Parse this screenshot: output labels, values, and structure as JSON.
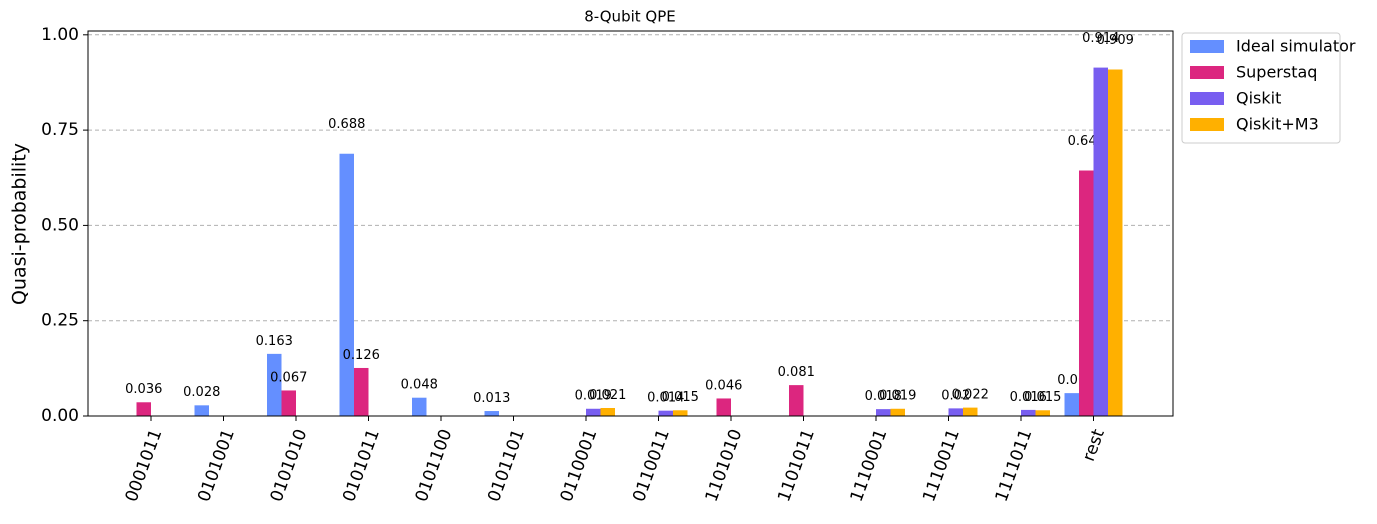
{
  "chart_data": {
    "type": "bar",
    "title": "8-Qubit QPE",
    "y_label": "Quasi-probability",
    "categories": [
      "0001011",
      "0101001",
      "0101010",
      "0101011",
      "0101100",
      "0101101",
      "0110001",
      "0110011",
      "1101010",
      "1101011",
      "1110001",
      "1110011",
      "1111011",
      "rest"
    ],
    "series": [
      {
        "name": "Ideal simulator",
        "color": "#648fff",
        "values": [
          null,
          0.028,
          0.163,
          0.688,
          0.048,
          0.013,
          null,
          null,
          null,
          null,
          null,
          null,
          null,
          0.06
        ]
      },
      {
        "name": "Superstaq",
        "color": "#dc267f",
        "values": [
          0.036,
          null,
          0.067,
          0.126,
          null,
          null,
          null,
          null,
          0.046,
          0.081,
          null,
          null,
          null,
          0.644
        ]
      },
      {
        "name": "Qiskit",
        "color": "#785ef0",
        "values": [
          null,
          null,
          null,
          null,
          null,
          null,
          0.019,
          0.014,
          null,
          null,
          0.018,
          0.02,
          0.016,
          0.914
        ]
      },
      {
        "name": "Qiskit+M3",
        "color": "#ffb000",
        "values": [
          null,
          null,
          null,
          null,
          null,
          null,
          0.021,
          0.015,
          null,
          null,
          0.019,
          0.022,
          0.015,
          0.909
        ]
      }
    ],
    "ylim": [
      0,
      1.01
    ],
    "yticks": [
      {
        "value": 0,
        "label": "0.00"
      },
      {
        "value": 0.25,
        "label": "0.25"
      },
      {
        "value": 0.5,
        "label": "0.50"
      },
      {
        "value": 0.75,
        "label": "0.75"
      },
      {
        "value": 1,
        "label": "1.00"
      }
    ],
    "grid": true,
    "legend": "outside-upper-right"
  }
}
